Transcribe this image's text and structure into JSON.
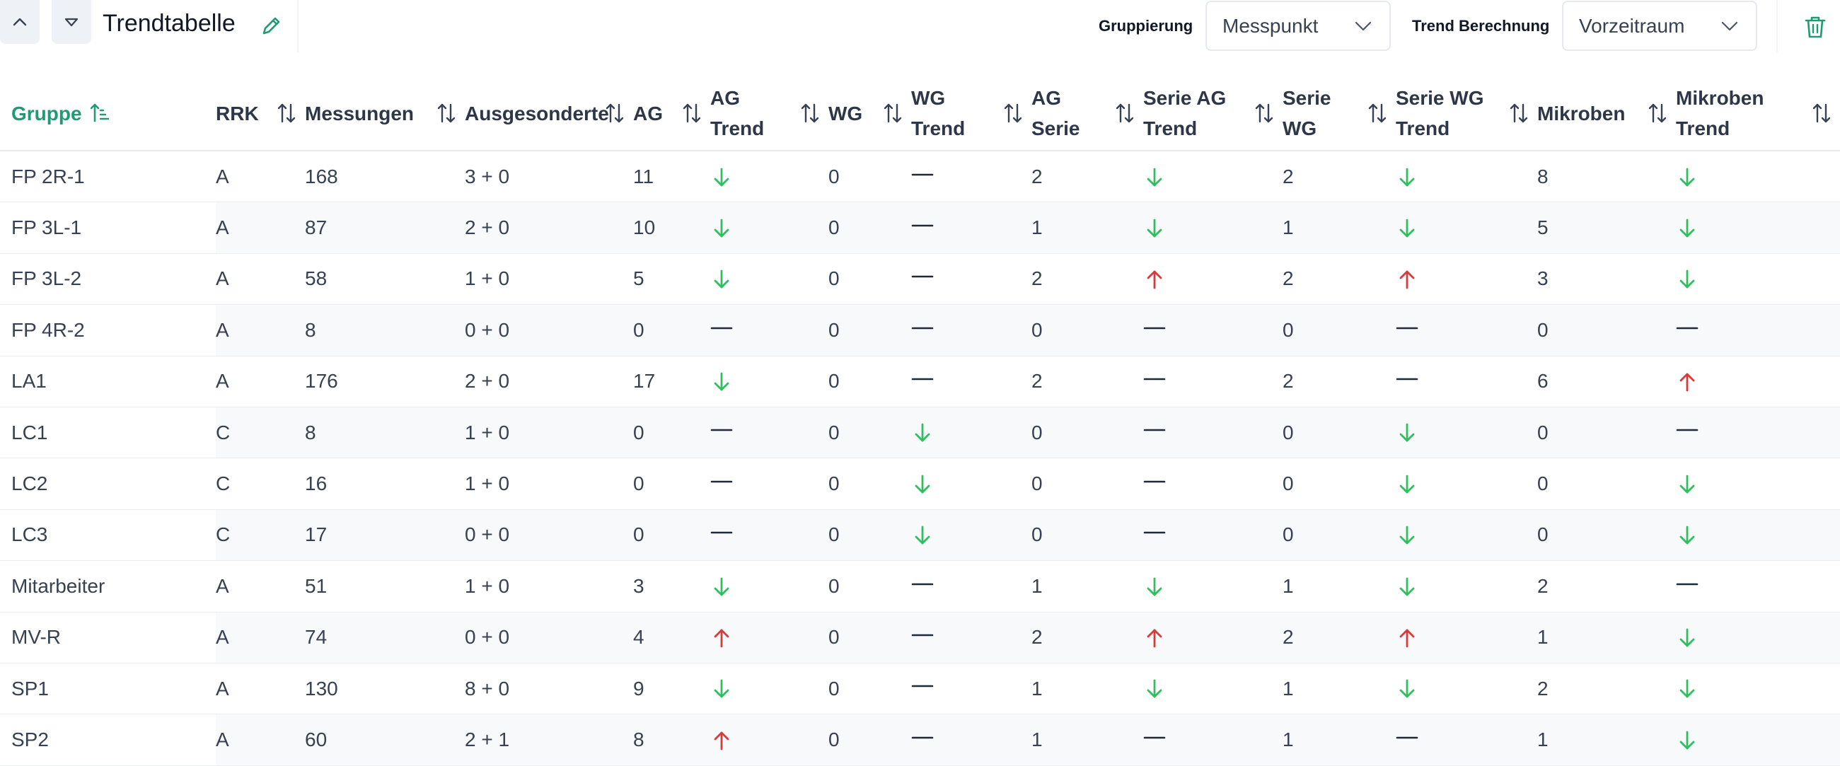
{
  "header": {
    "title": "Trendtabelle",
    "grouping_label": "Gruppierung",
    "grouping_value": "Messpunkt",
    "trend_label": "Trend Berechnung",
    "trend_value": "Vorzeitraum"
  },
  "colors": {
    "accent": "#1f9a73",
    "down": "#2fbf5e",
    "up": "#d63b3b",
    "flat": "#1f2937"
  },
  "columns": [
    {
      "key": "gruppe",
      "label": "Gruppe",
      "active": true
    },
    {
      "key": "rrk",
      "label": "RRK"
    },
    {
      "key": "messungen",
      "label": "Messungen"
    },
    {
      "key": "ausgesonderte",
      "label": "Ausgesonderte"
    },
    {
      "key": "ag",
      "label": "AG"
    },
    {
      "key": "ag_trend",
      "label": "AG Trend"
    },
    {
      "key": "wg",
      "label": "WG"
    },
    {
      "key": "wg_trend",
      "label": "WG Trend"
    },
    {
      "key": "ag_serie",
      "label": "AG Serie"
    },
    {
      "key": "serie_ag_trend",
      "label": "Serie AG Trend"
    },
    {
      "key": "serie_wg",
      "label": "Serie WG"
    },
    {
      "key": "serie_wg_trend",
      "label": "Serie WG Trend"
    },
    {
      "key": "mikroben",
      "label": "Mikroben"
    },
    {
      "key": "mikroben_trend",
      "label": "Mikroben Trend"
    }
  ],
  "rows": [
    {
      "gruppe": "FP 2R-1",
      "rrk": "A",
      "messungen": "168",
      "ausgesonderte": "3 + 0",
      "ag": "11",
      "ag_trend": "down",
      "wg": "0",
      "wg_trend": "flat",
      "ag_serie": "2",
      "serie_ag_trend": "down",
      "serie_wg": "2",
      "serie_wg_trend": "down",
      "mikroben": "8",
      "mikroben_trend": "down"
    },
    {
      "gruppe": "FP 3L-1",
      "rrk": "A",
      "messungen": "87",
      "ausgesonderte": "2 + 0",
      "ag": "10",
      "ag_trend": "down",
      "wg": "0",
      "wg_trend": "flat",
      "ag_serie": "1",
      "serie_ag_trend": "down",
      "serie_wg": "1",
      "serie_wg_trend": "down",
      "mikroben": "5",
      "mikroben_trend": "down"
    },
    {
      "gruppe": "FP 3L-2",
      "rrk": "A",
      "messungen": "58",
      "ausgesonderte": "1 + 0",
      "ag": "5",
      "ag_trend": "down",
      "wg": "0",
      "wg_trend": "flat",
      "ag_serie": "2",
      "serie_ag_trend": "up",
      "serie_wg": "2",
      "serie_wg_trend": "up",
      "mikroben": "3",
      "mikroben_trend": "down"
    },
    {
      "gruppe": "FP 4R-2",
      "rrk": "A",
      "messungen": "8",
      "ausgesonderte": "0 + 0",
      "ag": "0",
      "ag_trend": "flat",
      "wg": "0",
      "wg_trend": "flat",
      "ag_serie": "0",
      "serie_ag_trend": "flat",
      "serie_wg": "0",
      "serie_wg_trend": "flat",
      "mikroben": "0",
      "mikroben_trend": "flat"
    },
    {
      "gruppe": "LA1",
      "rrk": "A",
      "messungen": "176",
      "ausgesonderte": "2 + 0",
      "ag": "17",
      "ag_trend": "down",
      "wg": "0",
      "wg_trend": "flat",
      "ag_serie": "2",
      "serie_ag_trend": "flat",
      "serie_wg": "2",
      "serie_wg_trend": "flat",
      "mikroben": "6",
      "mikroben_trend": "up"
    },
    {
      "gruppe": "LC1",
      "rrk": "C",
      "messungen": "8",
      "ausgesonderte": "1 + 0",
      "ag": "0",
      "ag_trend": "flat",
      "wg": "0",
      "wg_trend": "down",
      "ag_serie": "0",
      "serie_ag_trend": "flat",
      "serie_wg": "0",
      "serie_wg_trend": "down",
      "mikroben": "0",
      "mikroben_trend": "flat"
    },
    {
      "gruppe": "LC2",
      "rrk": "C",
      "messungen": "16",
      "ausgesonderte": "1 + 0",
      "ag": "0",
      "ag_trend": "flat",
      "wg": "0",
      "wg_trend": "down",
      "ag_serie": "0",
      "serie_ag_trend": "flat",
      "serie_wg": "0",
      "serie_wg_trend": "down",
      "mikroben": "0",
      "mikroben_trend": "down"
    },
    {
      "gruppe": "LC3",
      "rrk": "C",
      "messungen": "17",
      "ausgesonderte": "0 + 0",
      "ag": "0",
      "ag_trend": "flat",
      "wg": "0",
      "wg_trend": "down",
      "ag_serie": "0",
      "serie_ag_trend": "flat",
      "serie_wg": "0",
      "serie_wg_trend": "down",
      "mikroben": "0",
      "mikroben_trend": "down"
    },
    {
      "gruppe": "Mitarbeiter",
      "rrk": "A",
      "messungen": "51",
      "ausgesonderte": "1 + 0",
      "ag": "3",
      "ag_trend": "down",
      "wg": "0",
      "wg_trend": "flat",
      "ag_serie": "1",
      "serie_ag_trend": "down",
      "serie_wg": "1",
      "serie_wg_trend": "down",
      "mikroben": "2",
      "mikroben_trend": "flat"
    },
    {
      "gruppe": "MV-R",
      "rrk": "A",
      "messungen": "74",
      "ausgesonderte": "0 + 0",
      "ag": "4",
      "ag_trend": "up",
      "wg": "0",
      "wg_trend": "flat",
      "ag_serie": "2",
      "serie_ag_trend": "up",
      "serie_wg": "2",
      "serie_wg_trend": "up",
      "mikroben": "1",
      "mikroben_trend": "down"
    },
    {
      "gruppe": "SP1",
      "rrk": "A",
      "messungen": "130",
      "ausgesonderte": "8 + 0",
      "ag": "9",
      "ag_trend": "down",
      "wg": "0",
      "wg_trend": "flat",
      "ag_serie": "1",
      "serie_ag_trend": "down",
      "serie_wg": "1",
      "serie_wg_trend": "down",
      "mikroben": "2",
      "mikroben_trend": "down"
    },
    {
      "gruppe": "SP2",
      "rrk": "A",
      "messungen": "60",
      "ausgesonderte": "2 + 1",
      "ag": "8",
      "ag_trend": "up",
      "wg": "0",
      "wg_trend": "flat",
      "ag_serie": "1",
      "serie_ag_trend": "flat",
      "serie_wg": "1",
      "serie_wg_trend": "flat",
      "mikroben": "1",
      "mikroben_trend": "down"
    }
  ]
}
